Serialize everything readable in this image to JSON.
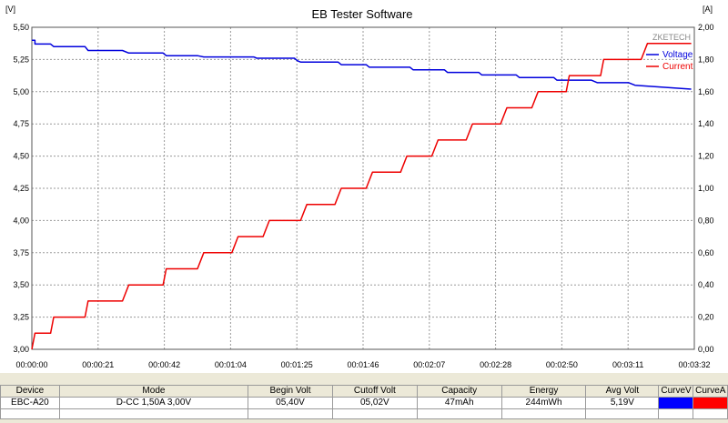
{
  "title": "EB Tester Software",
  "brand": "ZKETECH",
  "left_axis_unit": "[V]",
  "right_axis_unit": "[A]",
  "chart_data": {
    "type": "line",
    "title": "EB Tester Software",
    "x_ticks": [
      "00:00:00",
      "00:00:21",
      "00:00:42",
      "00:01:04",
      "00:01:25",
      "00:01:46",
      "00:02:07",
      "00:02:28",
      "00:02:50",
      "00:03:11",
      "00:03:32"
    ],
    "xlim_seconds": [
      0,
      212
    ],
    "y_left": {
      "unit": "[V]",
      "lim": [
        3.0,
        5.5
      ],
      "ticks": [
        "3,00",
        "3,25",
        "3,50",
        "3,75",
        "4,00",
        "4,25",
        "4,50",
        "4,75",
        "5,00",
        "5,25",
        "5,50"
      ]
    },
    "y_right": {
      "unit": "[A]",
      "lim": [
        0.0,
        2.0
      ],
      "ticks": [
        "0,00",
        "0,20",
        "0,40",
        "0,60",
        "0,80",
        "1,00",
        "1,20",
        "1,40",
        "1,60",
        "1,80",
        "2,00"
      ]
    },
    "grid": true,
    "legend": "top-right",
    "series": [
      {
        "name": "Voltage",
        "axis": "left",
        "color": "#0000dd",
        "x": [
          0,
          1,
          1,
          6,
          7,
          17,
          18,
          29,
          31,
          42,
          43,
          53,
          55,
          71,
          72,
          74,
          73,
          84,
          85,
          86,
          98,
          99,
          107,
          108,
          121,
          122,
          132,
          133,
          143,
          144,
          155,
          156,
          167,
          168,
          179,
          181,
          191,
          193,
          211
        ],
        "y": [
          5.4,
          5.4,
          5.37,
          5.37,
          5.35,
          5.35,
          5.32,
          5.32,
          5.3,
          5.3,
          5.28,
          5.28,
          5.27,
          5.27,
          5.26,
          5.26,
          5.26,
          5.26,
          5.24,
          5.23,
          5.23,
          5.21,
          5.21,
          5.19,
          5.19,
          5.17,
          5.17,
          5.15,
          5.15,
          5.13,
          5.13,
          5.11,
          5.11,
          5.09,
          5.09,
          5.07,
          5.07,
          5.05,
          5.02
        ]
      },
      {
        "name": "Current",
        "axis": "right",
        "color": "#ee0000",
        "x": [
          0,
          1,
          1,
          6,
          7,
          17,
          18,
          29,
          31,
          42,
          43,
          53,
          55,
          64,
          66,
          74,
          76,
          86,
          88,
          97,
          99,
          107,
          109,
          118,
          120,
          128,
          130,
          139,
          141,
          150,
          152,
          160,
          162,
          171,
          172,
          182,
          183,
          195,
          197,
          211
        ],
        "y": [
          0.0,
          0.1,
          0.1,
          0.1,
          0.2,
          0.2,
          0.3,
          0.3,
          0.4,
          0.4,
          0.5,
          0.5,
          0.6,
          0.6,
          0.7,
          0.7,
          0.8,
          0.8,
          0.9,
          0.9,
          1.0,
          1.0,
          1.1,
          1.1,
          1.2,
          1.2,
          1.3,
          1.3,
          1.4,
          1.4,
          1.5,
          1.5,
          1.6,
          1.6,
          1.7,
          1.7,
          1.8,
          1.8,
          1.9,
          1.9
        ]
      }
    ]
  },
  "info_table": {
    "headers": [
      "Device",
      "Mode",
      "Begin Volt",
      "Cutoff Volt",
      "Capacity",
      "Energy",
      "Avg Volt",
      "CurveV",
      "CurveA"
    ],
    "row": [
      "EBC-A20",
      "D-CC  1,50A  3,00V",
      "05,40V",
      "05,02V",
      "47mAh",
      "244mWh",
      "5,19V",
      "",
      ""
    ],
    "curve_v_color": "#0000ff",
    "curve_a_color": "#ff0000"
  }
}
